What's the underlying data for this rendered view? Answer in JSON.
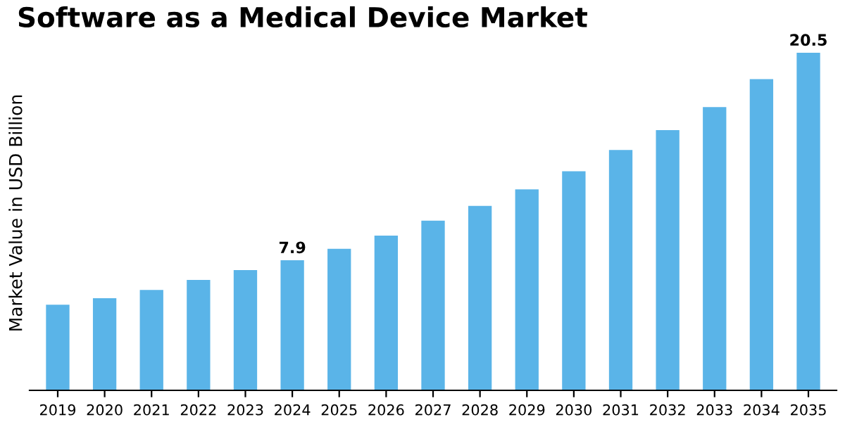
{
  "chart_data": {
    "type": "bar",
    "title": "Software as a Medical Device Market",
    "ylabel": "Market Value in USD Billion",
    "categories": [
      "2019",
      "2020",
      "2021",
      "2022",
      "2023",
      "2024",
      "2025",
      "2026",
      "2027",
      "2028",
      "2029",
      "2030",
      "2031",
      "2032",
      "2033",
      "2034",
      "2035"
    ],
    "values": [
      5.2,
      5.6,
      6.1,
      6.7,
      7.3,
      7.9,
      8.6,
      9.4,
      10.3,
      11.2,
      12.2,
      13.3,
      14.6,
      15.8,
      17.2,
      18.9,
      20.5
    ],
    "value_labels": [
      null,
      null,
      null,
      null,
      null,
      "7.9",
      null,
      null,
      null,
      null,
      null,
      null,
      null,
      null,
      null,
      null,
      "20.5"
    ],
    "color": "#5ab4e8",
    "grid": false,
    "legend": false
  }
}
